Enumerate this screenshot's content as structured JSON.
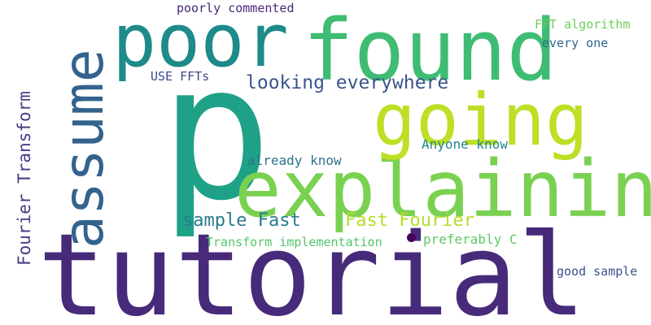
{
  "words": [
    {
      "text": "tutorial",
      "color": "#472a7a"
    },
    {
      "text": "p",
      "color": "#1fa187"
    },
    {
      "text": "explaining",
      "color": "#7ad151"
    },
    {
      "text": "found",
      "color": "#3fbc73"
    },
    {
      "text": "poor",
      "color": "#1e8a8a"
    },
    {
      "text": "going",
      "color": "#bddf26"
    },
    {
      "text": "assume",
      "color": "#33638d"
    },
    {
      "text": "looking everywhere",
      "color": "#3a548c"
    },
    {
      "text": "Fourier Transform",
      "color": "#433e85"
    },
    {
      "text": "sample Fast",
      "color": "#287c8e"
    },
    {
      "text": "Fast Fourier",
      "color": "#b5de2b"
    },
    {
      "text": "Transform implementation",
      "color": "#54c568"
    },
    {
      "text": "preferably C",
      "color": "#5ec962"
    },
    {
      "text": "Anyone know",
      "color": "#25858e"
    },
    {
      "text": "already know",
      "color": "#2c728e"
    },
    {
      "text": "USE FFTs",
      "color": "#3e4989"
    },
    {
      "text": "poorly commented",
      "color": "#482878"
    },
    {
      "text": "FFT algorithm",
      "color": "#6ece58"
    },
    {
      "text": "every one",
      "color": "#31688e"
    },
    {
      "text": "good sample",
      "color": "#3b528b"
    },
    {
      "text": "",
      "color": "#450457"
    }
  ]
}
